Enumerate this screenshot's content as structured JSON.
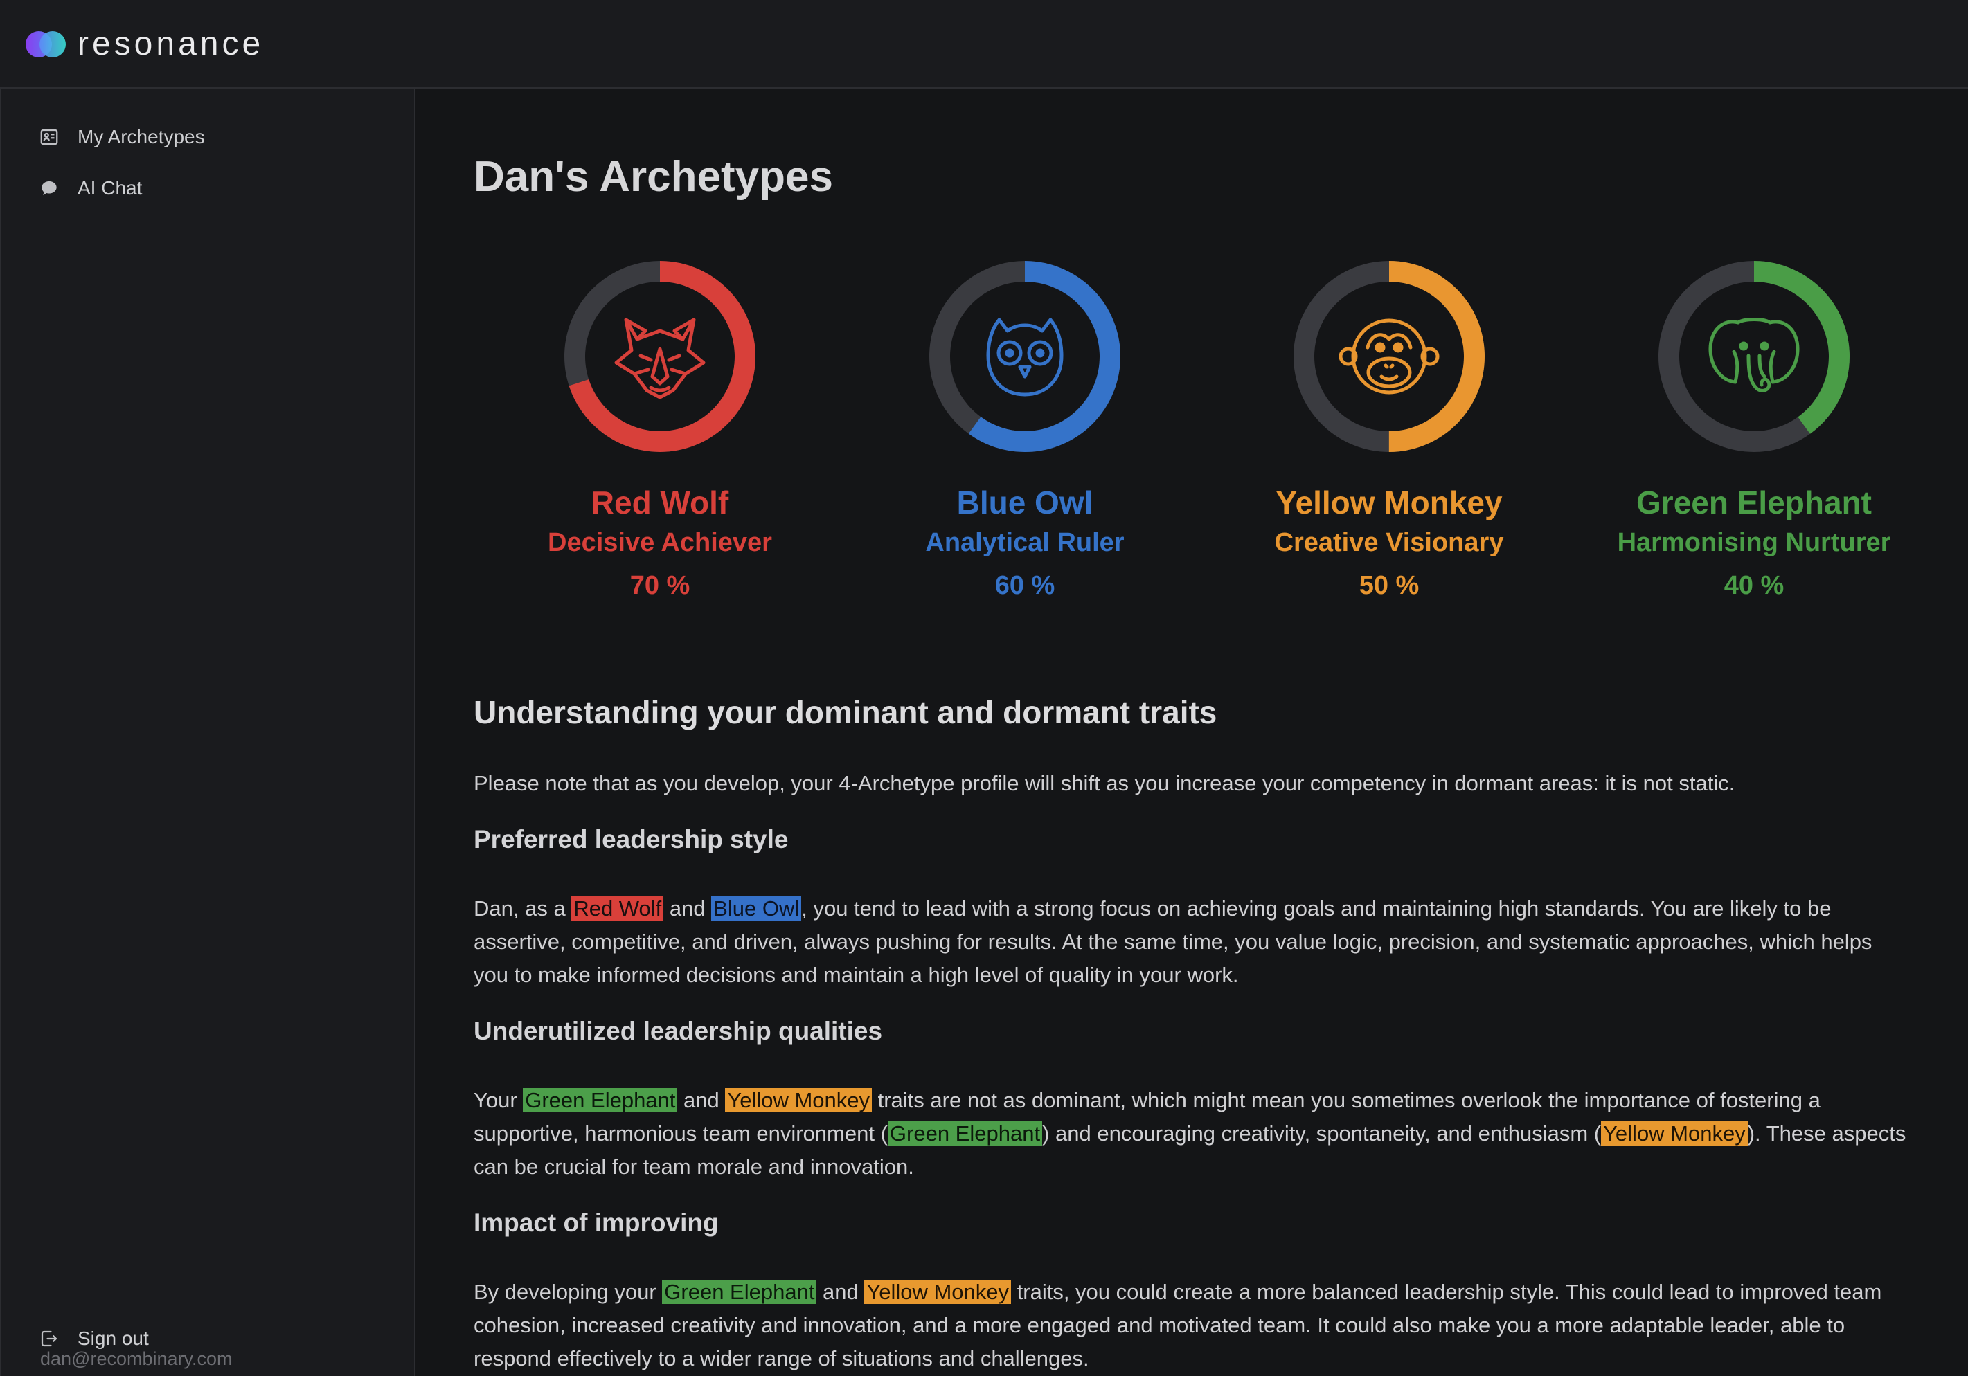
{
  "app": {
    "name": "resonance"
  },
  "sidebar": {
    "items": [
      {
        "label": "My Archetypes",
        "icon": "id-card-icon"
      },
      {
        "label": "AI Chat",
        "icon": "chat-bubble-icon"
      }
    ],
    "user_email": "dan@recombinary.com",
    "sign_out_label": "Sign out"
  },
  "page": {
    "title": "Dan's Archetypes"
  },
  "archetypes": [
    {
      "name": "Red Wolf",
      "role": "Decisive Achiever",
      "percent_label": "70 %",
      "percent": 70,
      "color": "#d8403a",
      "icon": "wolf-icon"
    },
    {
      "name": "Blue Owl",
      "role": "Analytical Ruler",
      "percent_label": "60 %",
      "percent": 60,
      "color": "#3573c9",
      "icon": "owl-icon"
    },
    {
      "name": "Yellow Monkey",
      "role": "Creative Visionary",
      "percent_label": "50 %",
      "percent": 50,
      "color": "#e99630",
      "icon": "monkey-icon"
    },
    {
      "name": "Green Elephant",
      "role": "Harmonising Nurturer",
      "percent_label": "40 %",
      "percent": 40,
      "color": "#4a9d47",
      "icon": "elephant-icon"
    }
  ],
  "ring_track_color": "#3a3b40",
  "traits": {
    "title": "Understanding your dominant and dormant traits",
    "note": "Please note that as you develop, your 4-Archetype profile will shift as you increase your competency in dormant areas: it is not static.",
    "preferred": {
      "title": "Preferred leadership style",
      "t1": "Dan, as a ",
      "h1": "Red Wolf",
      "t2": " and ",
      "h2": "Blue Owl",
      "t3": ", you tend to lead with a strong focus on achieving goals and maintaining high standards. You are likely to be assertive, competitive, and driven, always pushing for results. At the same time, you value logic, precision, and systematic approaches, which helps you to make informed decisions and maintain a high level of quality in your work."
    },
    "underutilized": {
      "title": "Underutilized leadership qualities",
      "t1": "Your ",
      "h1": "Green Elephant",
      "t2": " and ",
      "h2": "Yellow Monkey",
      "t3": " traits are not as dominant, which might mean you sometimes overlook the importance of fostering a supportive, harmonious team environment (",
      "h3": "Green Elephant",
      "t4": ") and encouraging creativity, spontaneity, and enthusiasm (",
      "h4": "Yellow Monkey",
      "t5": "). These aspects can be crucial for team morale and innovation."
    },
    "impact": {
      "title": "Impact of improving",
      "t1": "By developing your ",
      "h1": "Green Elephant",
      "t2": " and ",
      "h2": "Yellow Monkey",
      "t3": " traits, you could create a more balanced leadership style. This could lead to improved team cohesion, increased creativity and innovation, and a more engaged and motivated team. It could also make you a more adaptable leader, able to respond effectively to a wider range of situations and challenges."
    }
  }
}
